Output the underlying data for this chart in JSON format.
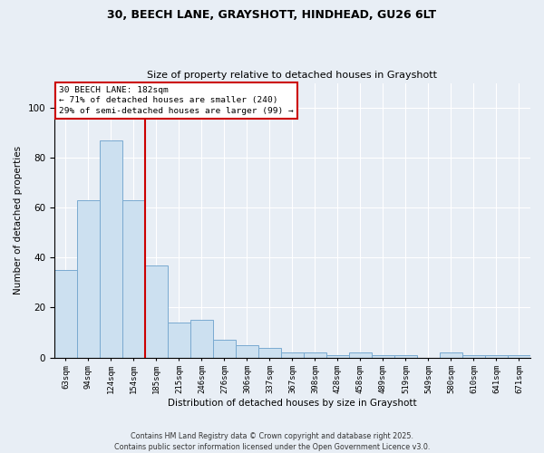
{
  "title": "30, BEECH LANE, GRAYSHOTT, HINDHEAD, GU26 6LT",
  "subtitle": "Size of property relative to detached houses in Grayshott",
  "xlabel": "Distribution of detached houses by size in Grayshott",
  "ylabel": "Number of detached properties",
  "categories": [
    "63sqm",
    "94sqm",
    "124sqm",
    "154sqm",
    "185sqm",
    "215sqm",
    "246sqm",
    "276sqm",
    "306sqm",
    "337sqm",
    "367sqm",
    "398sqm",
    "428sqm",
    "458sqm",
    "489sqm",
    "519sqm",
    "549sqm",
    "580sqm",
    "610sqm",
    "641sqm",
    "671sqm"
  ],
  "values": [
    35,
    63,
    87,
    63,
    37,
    14,
    15,
    7,
    5,
    4,
    2,
    2,
    1,
    2,
    1,
    1,
    0,
    2,
    1,
    1,
    1
  ],
  "bar_color": "#cce0f0",
  "bar_edge_color": "#7aaad0",
  "property_label": "30 BEECH LANE: 182sqm",
  "annotation_line1": "← 71% of detached houses are smaller (240)",
  "annotation_line2": "29% of semi-detached houses are larger (99) →",
  "box_facecolor": "#ffffff",
  "box_edgecolor": "#cc0000",
  "line_color": "#cc0000",
  "line_x_index": 3.5,
  "ylim": [
    0,
    110
  ],
  "yticks": [
    0,
    20,
    40,
    60,
    80,
    100
  ],
  "footnote1": "Contains HM Land Registry data © Crown copyright and database right 2025.",
  "footnote2": "Contains public sector information licensed under the Open Government Licence v3.0.",
  "background_color": "#e8eef5",
  "plot_background": "#e8eef5",
  "grid_color": "#ffffff"
}
